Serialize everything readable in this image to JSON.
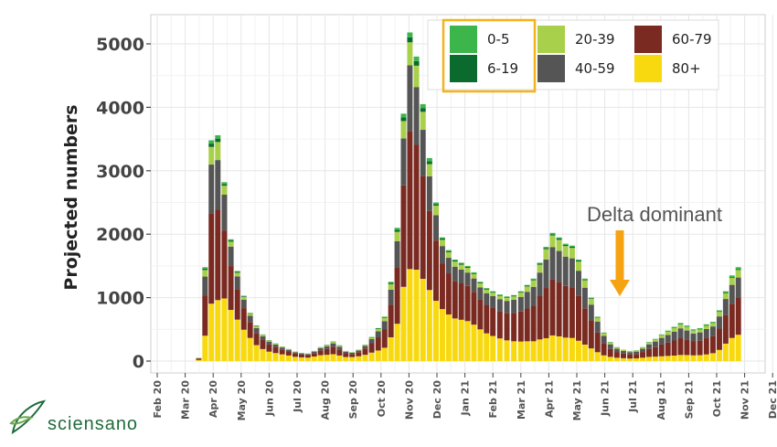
{
  "chart_data": {
    "type": "bar",
    "stacked": true,
    "title": "",
    "xlabel": "",
    "ylabel": "Projected numbers",
    "ylim": [
      0,
      5500
    ],
    "yticks": [
      0,
      1000,
      2000,
      3000,
      4000,
      5000
    ],
    "xticks": [
      "Feb 20",
      "Mar 20",
      "Apr 20",
      "May 20",
      "Jun 20",
      "Jul 20",
      "Aug 20",
      "Sep 20",
      "Oct 20",
      "Nov 20",
      "Dec 20",
      "Jan 21",
      "Feb 21",
      "Mar 21",
      "Apr 21",
      "May 21",
      "Jun 21",
      "Jul 21",
      "Aug 21",
      "Sep 21",
      "Oct 21",
      "Nov 21",
      "Dec 21"
    ],
    "grid": true,
    "legend_position": "top-right",
    "legend_order": [
      "0-5",
      "6-19",
      "20-39",
      "40-59",
      "60-79",
      "80+"
    ],
    "stack_order": [
      "80+",
      "60-79",
      "40-59",
      "20-39",
      "6-19",
      "0-5"
    ],
    "colors": {
      "0-5": "#3cb54a",
      "6-19": "#0b6b2e",
      "20-39": "#a9d04a",
      "40-59": "#555555",
      "60-79": "#7a2a20",
      "80+": "#f8d90f"
    },
    "x_start": "2020-03-16",
    "x_step_days": 7,
    "totals": [
      50,
      1480,
      3480,
      3560,
      2820,
      1920,
      1420,
      1030,
      760,
      560,
      420,
      330,
      280,
      230,
      190,
      150,
      130,
      120,
      160,
      220,
      260,
      310,
      250,
      160,
      140,
      180,
      260,
      380,
      520,
      700,
      1250,
      2100,
      3900,
      5180,
      4800,
      4050,
      3200,
      2500,
      1950,
      1750,
      1600,
      1550,
      1500,
      1400,
      1250,
      1150,
      1100,
      1050,
      1020,
      1040,
      1100,
      1200,
      1300,
      1550,
      1800,
      2020,
      1950,
      1850,
      1820,
      1600,
      1300,
      1000,
      700,
      450,
      300,
      220,
      180,
      160,
      170,
      220,
      300,
      350,
      420,
      480,
      540,
      600,
      560,
      500,
      520,
      580,
      620,
      800,
      1100,
      1350,
      1480
    ],
    "share_80plus": [
      0.35,
      0.27,
      0.26,
      0.27,
      0.35,
      0.42,
      0.46,
      0.48,
      0.48,
      0.45,
      0.45,
      0.45,
      0.45,
      0.46,
      0.46,
      0.45,
      0.45,
      0.45,
      0.45,
      0.42,
      0.38,
      0.35,
      0.35,
      0.4,
      0.45,
      0.42,
      0.38,
      0.35,
      0.32,
      0.3,
      0.3,
      0.28,
      0.3,
      0.28,
      0.3,
      0.32,
      0.35,
      0.38,
      0.42,
      0.42,
      0.42,
      0.42,
      0.42,
      0.41,
      0.4,
      0.38,
      0.36,
      0.34,
      0.32,
      0.3,
      0.28,
      0.26,
      0.24,
      0.22,
      0.2,
      0.2,
      0.2,
      0.2,
      0.2,
      0.2,
      0.2,
      0.2,
      0.2,
      0.2,
      0.22,
      0.24,
      0.25,
      0.25,
      0.25,
      0.24,
      0.22,
      0.2,
      0.18,
      0.17,
      0.16,
      0.16,
      0.17,
      0.18,
      0.18,
      0.18,
      0.2,
      0.22,
      0.25,
      0.27,
      0.28
    ],
    "share_60_79": [
      0.45,
      0.43,
      0.41,
      0.4,
      0.38,
      0.36,
      0.34,
      0.33,
      0.33,
      0.34,
      0.34,
      0.34,
      0.34,
      0.34,
      0.34,
      0.34,
      0.34,
      0.34,
      0.34,
      0.35,
      0.36,
      0.38,
      0.38,
      0.36,
      0.34,
      0.36,
      0.38,
      0.39,
      0.4,
      0.41,
      0.41,
      0.42,
      0.41,
      0.42,
      0.41,
      0.4,
      0.39,
      0.38,
      0.37,
      0.37,
      0.37,
      0.37,
      0.37,
      0.37,
      0.38,
      0.39,
      0.4,
      0.41,
      0.42,
      0.43,
      0.43,
      0.43,
      0.43,
      0.44,
      0.44,
      0.44,
      0.44,
      0.44,
      0.44,
      0.44,
      0.44,
      0.44,
      0.44,
      0.43,
      0.42,
      0.41,
      0.4,
      0.4,
      0.4,
      0.41,
      0.42,
      0.43,
      0.44,
      0.44,
      0.44,
      0.44,
      0.44,
      0.44,
      0.44,
      0.44,
      0.43,
      0.42,
      0.41,
      0.4,
      0.4
    ],
    "share_40_59": [
      0.14,
      0.2,
      0.22,
      0.22,
      0.2,
      0.16,
      0.14,
      0.13,
      0.13,
      0.14,
      0.14,
      0.14,
      0.14,
      0.13,
      0.13,
      0.14,
      0.14,
      0.14,
      0.14,
      0.15,
      0.16,
      0.17,
      0.17,
      0.16,
      0.14,
      0.15,
      0.16,
      0.17,
      0.18,
      0.19,
      0.19,
      0.2,
      0.19,
      0.2,
      0.19,
      0.18,
      0.17,
      0.16,
      0.14,
      0.14,
      0.14,
      0.14,
      0.14,
      0.15,
      0.15,
      0.16,
      0.17,
      0.18,
      0.19,
      0.2,
      0.21,
      0.22,
      0.23,
      0.24,
      0.25,
      0.25,
      0.25,
      0.25,
      0.25,
      0.25,
      0.25,
      0.25,
      0.25,
      0.25,
      0.24,
      0.23,
      0.23,
      0.23,
      0.23,
      0.23,
      0.24,
      0.25,
      0.25,
      0.25,
      0.26,
      0.26,
      0.25,
      0.25,
      0.25,
      0.25,
      0.25,
      0.24,
      0.23,
      0.22,
      0.21
    ],
    "share_20_39": [
      0.04,
      0.07,
      0.08,
      0.08,
      0.05,
      0.04,
      0.04,
      0.04,
      0.04,
      0.05,
      0.05,
      0.05,
      0.05,
      0.05,
      0.05,
      0.05,
      0.05,
      0.05,
      0.05,
      0.06,
      0.07,
      0.07,
      0.07,
      0.06,
      0.05,
      0.05,
      0.06,
      0.06,
      0.07,
      0.07,
      0.07,
      0.07,
      0.07,
      0.07,
      0.07,
      0.07,
      0.06,
      0.06,
      0.05,
      0.05,
      0.05,
      0.05,
      0.05,
      0.05,
      0.05,
      0.05,
      0.05,
      0.05,
      0.05,
      0.05,
      0.06,
      0.07,
      0.08,
      0.08,
      0.09,
      0.09,
      0.09,
      0.09,
      0.09,
      0.09,
      0.09,
      0.09,
      0.09,
      0.09,
      0.09,
      0.09,
      0.09,
      0.09,
      0.09,
      0.09,
      0.09,
      0.09,
      0.1,
      0.1,
      0.1,
      0.1,
      0.1,
      0.09,
      0.09,
      0.09,
      0.09,
      0.09,
      0.08,
      0.08,
      0.08
    ],
    "share_6_19": [
      0.01,
      0.015,
      0.015,
      0.015,
      0.01,
      0.01,
      0.01,
      0.01,
      0.01,
      0.01,
      0.01,
      0.01,
      0.01,
      0.01,
      0.01,
      0.01,
      0.01,
      0.01,
      0.01,
      0.01,
      0.015,
      0.015,
      0.015,
      0.01,
      0.01,
      0.01,
      0.01,
      0.015,
      0.015,
      0.015,
      0.015,
      0.015,
      0.015,
      0.015,
      0.015,
      0.015,
      0.015,
      0.01,
      0.01,
      0.01,
      0.01,
      0.01,
      0.01,
      0.01,
      0.01,
      0.01,
      0.01,
      0.01,
      0.01,
      0.01,
      0.01,
      0.01,
      0.01,
      0.01,
      0.01,
      0.01,
      0.01,
      0.01,
      0.01,
      0.01,
      0.01,
      0.01,
      0.01,
      0.01,
      0.01,
      0.01,
      0.01,
      0.01,
      0.01,
      0.01,
      0.01,
      0.01,
      0.01,
      0.01,
      0.01,
      0.01,
      0.01,
      0.01,
      0.01,
      0.01,
      0.01,
      0.01,
      0.01,
      0.01,
      0.01
    ],
    "annotation": {
      "text": "Delta dominant",
      "x": "2021-07-01"
    }
  },
  "logo": {
    "text": "sciensano"
  }
}
